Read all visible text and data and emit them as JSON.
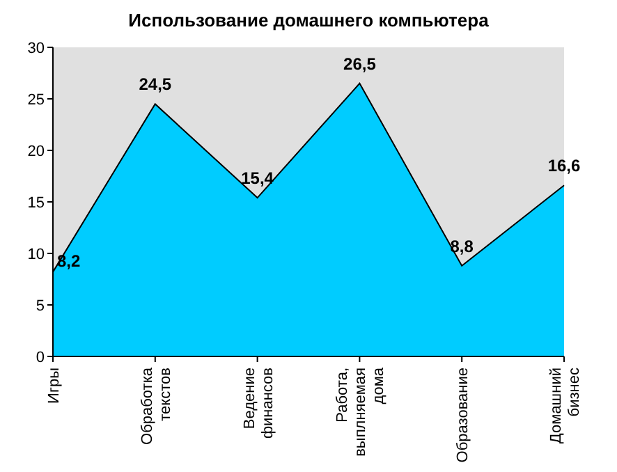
{
  "chart_data": {
    "type": "area",
    "title": "Использование домашнего компьютера",
    "categories": [
      "Игры",
      "Обработка текстов",
      "Ведение финансов",
      "Работа, выплняемая дома",
      "Образование",
      "Домашний бизнес"
    ],
    "values": [
      8.2,
      24.5,
      15.4,
      26.5,
      8.8,
      16.6
    ],
    "value_labels": [
      "8,2",
      "24,5",
      "15,4",
      "26,5",
      "8,8",
      "16,6"
    ],
    "color": "#00ccff",
    "ylim": [
      0,
      30
    ],
    "yticks": [
      0,
      5,
      10,
      15,
      20,
      25,
      30
    ],
    "grid": false
  }
}
